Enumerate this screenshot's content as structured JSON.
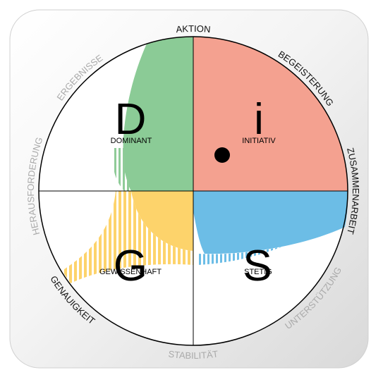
{
  "ring_labels": [
    "AKTION",
    "BEGEISTERUNG",
    "ZUSAMMENARBEIT",
    "UNTERSTÜTZUNG",
    "STABILITÄT",
    "GENAUIGKEIT",
    "HERAUSFORDERUNG",
    "ERGEBNISSE"
  ],
  "quadrants": [
    {
      "letter": "D",
      "name": "DOMINANT"
    },
    {
      "letter": "i",
      "name": "INITIATIV"
    },
    {
      "letter": "S",
      "name": "STETIG"
    },
    {
      "letter": "G",
      "name": "GEWISSENHAFT"
    }
  ]
}
